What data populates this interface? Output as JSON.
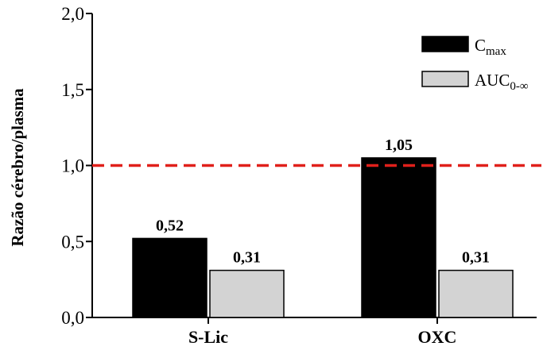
{
  "chart_data": {
    "type": "bar",
    "ylabel": "Razão cérebro/plasma",
    "xlabel": "",
    "ylim": [
      0,
      2.0
    ],
    "yticks": [
      0.0,
      0.5,
      1.0,
      1.5,
      2.0
    ],
    "ytick_labels": [
      "0,0",
      "0,5",
      "1,0",
      "1,5",
      "2,0"
    ],
    "categories": [
      "S-Lic",
      "OXC"
    ],
    "series": [
      {
        "name": "Cmax",
        "legend_base": "C",
        "legend_sub": "max",
        "color": "#000000",
        "values": [
          0.52,
          1.05
        ],
        "labels": [
          "0,52",
          "1,05"
        ]
      },
      {
        "name": "AUC0-∞",
        "legend_base": "AUC",
        "legend_sub": "0-∞",
        "color": "#d3d3d3",
        "values": [
          0.31,
          0.31
        ],
        "labels": [
          "0,31",
          "0,31"
        ]
      }
    ],
    "reference_line": {
      "value": 1.0,
      "color": "#e0201b",
      "style": "dashed"
    },
    "legend_position": "top-right",
    "grid": false
  }
}
